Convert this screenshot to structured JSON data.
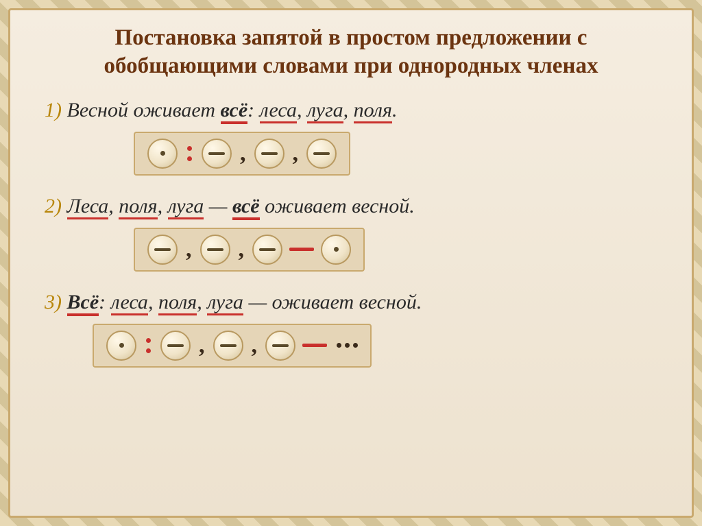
{
  "title": "Постановка запятой в простом предложении с обобщающими словами при однородных членах",
  "examples": [
    {
      "num": "1)",
      "parts": [
        {
          "text": "Весной",
          "style": "plain"
        },
        {
          "text": "   оживает  ",
          "style": "plain"
        },
        {
          "text": "всё",
          "style": "bold-u"
        },
        {
          "text": ": ",
          "style": "plain"
        },
        {
          "text": "леса",
          "style": "u"
        },
        {
          "text": ",  ",
          "style": "plain"
        },
        {
          "text": "луга",
          "style": "u"
        },
        {
          "text": ",  ",
          "style": "plain"
        },
        {
          "text": "поля",
          "style": "u"
        },
        {
          "text": ".",
          "style": "plain"
        }
      ],
      "schema": [
        "gen",
        "colon-red",
        "item",
        "comma-dark",
        "item",
        "comma-dark",
        "item"
      ]
    },
    {
      "num": "2)",
      "parts": [
        {
          "text": "  ",
          "style": "plain"
        },
        {
          "text": "Леса",
          "style": "u"
        },
        {
          "text": ", ",
          "style": "plain"
        },
        {
          "text": "поля",
          "style": "u"
        },
        {
          "text": ", ",
          "style": "plain"
        },
        {
          "text": "луга",
          "style": "u"
        },
        {
          "text": " — ",
          "style": "plain"
        },
        {
          "text": "всё",
          "style": "bold-u"
        },
        {
          "text": " оживает весной.",
          "style": "plain"
        }
      ],
      "schema": [
        "item",
        "comma-dark",
        "item",
        "comma-dark",
        "item",
        "dash-red",
        "gen"
      ]
    },
    {
      "num": "3)",
      "parts": [
        {
          "text": " ",
          "style": "plain"
        },
        {
          "text": "Всё",
          "style": "bold-u"
        },
        {
          "text": ": ",
          "style": "plain"
        },
        {
          "text": "леса",
          "style": "u"
        },
        {
          "text": ", ",
          "style": "plain"
        },
        {
          "text": "поля",
          "style": "u"
        },
        {
          "text": ", ",
          "style": "plain"
        },
        {
          "text": "луга",
          "style": "u"
        },
        {
          "text": " — оживает весной.",
          "style": "plain"
        }
      ],
      "schema": [
        "gen",
        "colon-red",
        "item",
        "comma-dark",
        "item",
        "comma-dark",
        "item",
        "dash-red",
        "ellipsis"
      ]
    }
  ],
  "colors": {
    "title_color": "#6b3410",
    "underline_color": "#c9302c",
    "box_bg": "#e5d5b7",
    "box_border": "#c9a96e",
    "circle_border": "#b89960",
    "stripe_light": "#e8d9b5",
    "stripe_dark": "#d4c499",
    "inner_bg": "#f5ede0"
  }
}
